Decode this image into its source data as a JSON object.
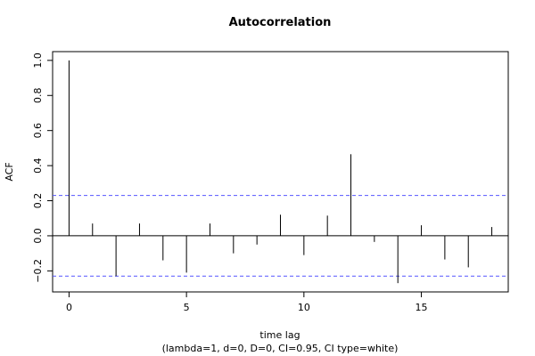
{
  "chart_data": {
    "type": "bar",
    "title": "Autocorrelation",
    "xlabel": "time lag",
    "subtitle": "(lambda=1, d=0, D=0, CI=0.95, CI type=white)",
    "ylabel": "ACF",
    "xlim": [
      -0.7,
      18.7
    ],
    "ylim": [
      -0.32,
      1.05
    ],
    "x_ticks": [
      0,
      5,
      10,
      15
    ],
    "y_ticks": [
      -0.2,
      0.0,
      0.2,
      0.4,
      0.6,
      0.8,
      1.0
    ],
    "x_tick_labels": [
      "0",
      "5",
      "10",
      "15"
    ],
    "y_tick_labels": [
      "−0.2",
      "0.0",
      "0.2",
      "0.4",
      "0.6",
      "0.8",
      "1.0"
    ],
    "lags": [
      0,
      1,
      2,
      3,
      4,
      5,
      6,
      7,
      8,
      9,
      10,
      11,
      12,
      13,
      14,
      15,
      16,
      17,
      18
    ],
    "values": [
      1.0,
      0.07,
      -0.23,
      0.07,
      -0.14,
      -0.21,
      0.07,
      -0.1,
      -0.05,
      0.12,
      -0.11,
      0.115,
      0.465,
      -0.035,
      -0.27,
      0.06,
      -0.135,
      -0.18,
      0.05
    ],
    "ci": 0.23,
    "ci_color": "#5555ff",
    "bar_color": "#000000",
    "grid": false,
    "legend": "none"
  }
}
